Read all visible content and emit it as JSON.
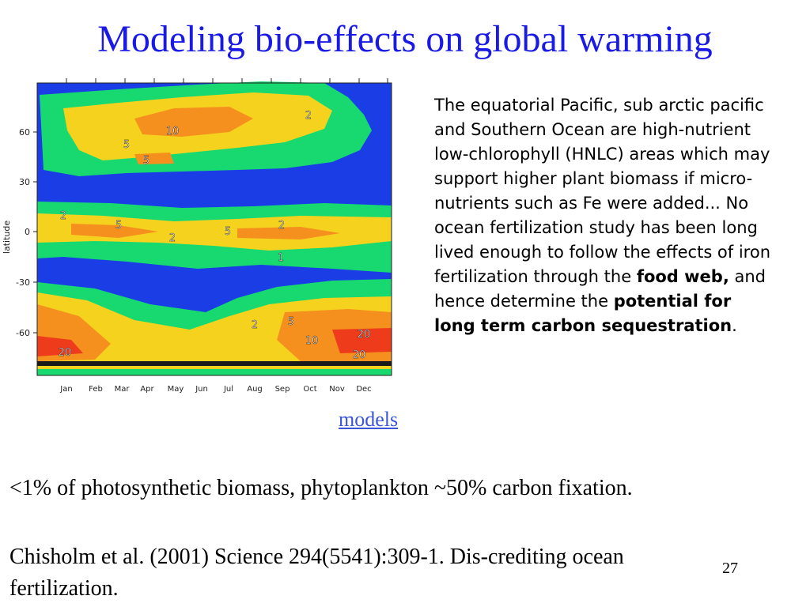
{
  "slide": {
    "title": "Modeling bio-effects on global warming",
    "page_number": "27"
  },
  "figure": {
    "ylabel": "latitude",
    "y_ticks": [
      "60",
      "30",
      "0",
      "-30",
      "-60"
    ],
    "x_ticks": [
      "Jan",
      "Feb",
      "Mar",
      "Apr",
      "May",
      "Jun",
      "Jul",
      "Aug",
      "Sep",
      "Oct",
      "Nov",
      "Dec"
    ],
    "contour_labels": [
      "2",
      "10",
      "5",
      "5",
      "2",
      "5",
      "2",
      "5",
      "2",
      "1",
      "2",
      "5",
      "20",
      "10",
      "20",
      "20"
    ],
    "colors": {
      "ocean": "#1a3de6",
      "green": "#18d970",
      "yellow": "#f5d21e",
      "orange": "#f5901e",
      "red": "#ee3b1c",
      "land": "#1a1a1a"
    }
  },
  "link": {
    "models": "models"
  },
  "description": {
    "part1": "The equatorial Pacific, sub arctic pacific and Southern Ocean are high-nutrient low-chlorophyll (HNLC) areas which may support higher plant biomass if micro-nutrients such as Fe were added... No ocean fertilization study has been long lived enough to follow the effects of iron fertilization through the ",
    "bold1": "food web,",
    "part2": " and hence determine the ",
    "bold2": "potential for long term carbon sequestration",
    "part3": "."
  },
  "bullets": [
    "<1% of photosynthetic biomass, phytoplankton ~50% carbon fixation.",
    "Chisholm  et al. (2001) Science 294(5541):309-1. Dis-crediting ocean fertilization."
  ]
}
